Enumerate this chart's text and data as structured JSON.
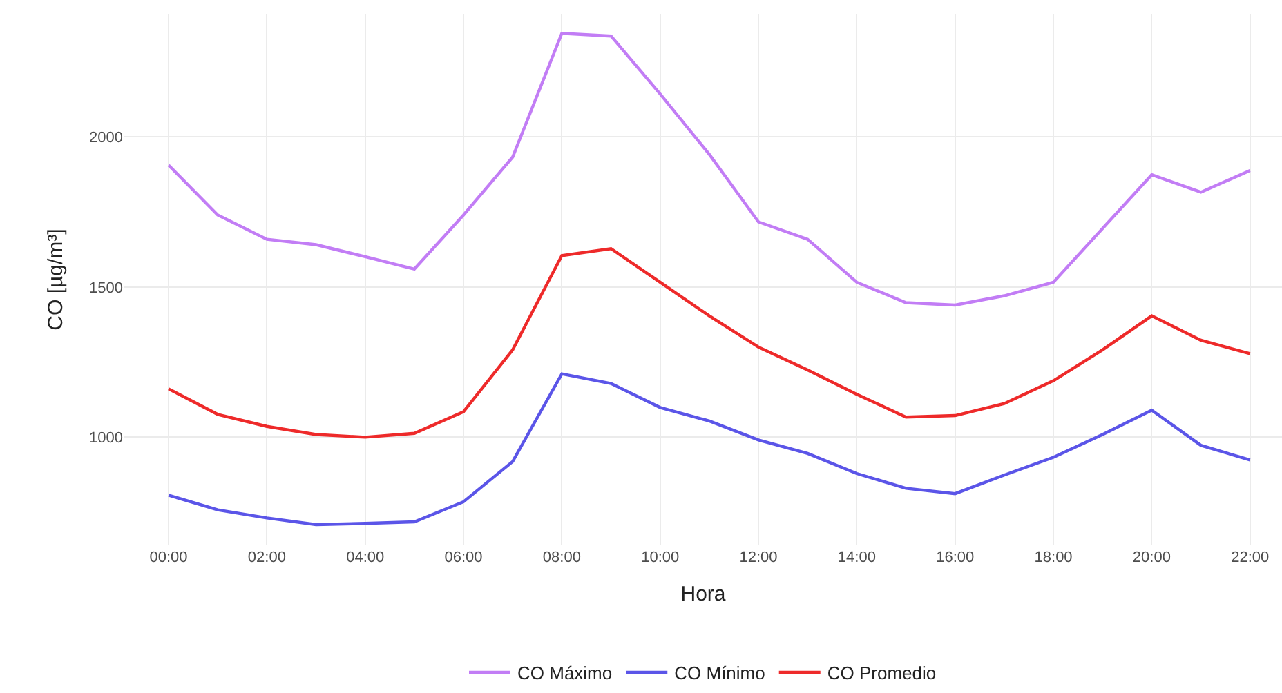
{
  "chart_data": {
    "type": "line",
    "xlabel": "Hora",
    "ylabel": "CO [µg/m³]",
    "x": [
      0,
      1,
      2,
      3,
      4,
      5,
      6,
      7,
      8,
      9,
      10,
      11,
      12,
      13,
      14,
      15,
      16,
      17,
      18,
      19,
      20,
      21,
      22
    ],
    "series": [
      {
        "name": "CO Máximo",
        "color": "#c27df5",
        "values": [
          1906,
          1740,
          1659,
          1641,
          1601,
          1560,
          1740,
          1933,
          2345,
          2336,
          2143,
          1942,
          1717,
          1659,
          1516,
          1448,
          1440,
          1471,
          1516,
          1695,
          1874,
          1816,
          1888
        ]
      },
      {
        "name": "CO Mínimo",
        "color": "#5b55e8",
        "values": [
          807,
          758,
          731,
          709,
          713,
          718,
          785,
          919,
          1211,
          1179,
          1099,
          1054,
          991,
          946,
          879,
          830,
          812,
          874,
          933,
          1009,
          1090,
          973,
          924
        ]
      },
      {
        "name": "CO Promedio",
        "color": "#ee2a2a",
        "values": [
          1161,
          1076,
          1036,
          1009,
          1000,
          1013,
          1085,
          1291,
          1605,
          1628,
          1516,
          1404,
          1300,
          1224,
          1143,
          1067,
          1072,
          1112,
          1188,
          1291,
          1404,
          1323,
          1278
        ]
      }
    ],
    "xlim": [
      -0.9,
      22.65
    ],
    "ylim": [
      640,
      2410
    ],
    "xticks": [
      {
        "value": 0,
        "label": "00:00"
      },
      {
        "value": 2,
        "label": "02:00"
      },
      {
        "value": 4,
        "label": "04:00"
      },
      {
        "value": 6,
        "label": "06:00"
      },
      {
        "value": 8,
        "label": "08:00"
      },
      {
        "value": 10,
        "label": "10:00"
      },
      {
        "value": 12,
        "label": "12:00"
      },
      {
        "value": 14,
        "label": "14:00"
      },
      {
        "value": 16,
        "label": "16:00"
      },
      {
        "value": 18,
        "label": "18:00"
      },
      {
        "value": 20,
        "label": "20:00"
      },
      {
        "value": 22,
        "label": "22:00"
      }
    ],
    "yticks": [
      1000,
      1500,
      2000
    ],
    "grid": true,
    "legend": "bottom",
    "marker": "none",
    "line_style": "solid"
  }
}
